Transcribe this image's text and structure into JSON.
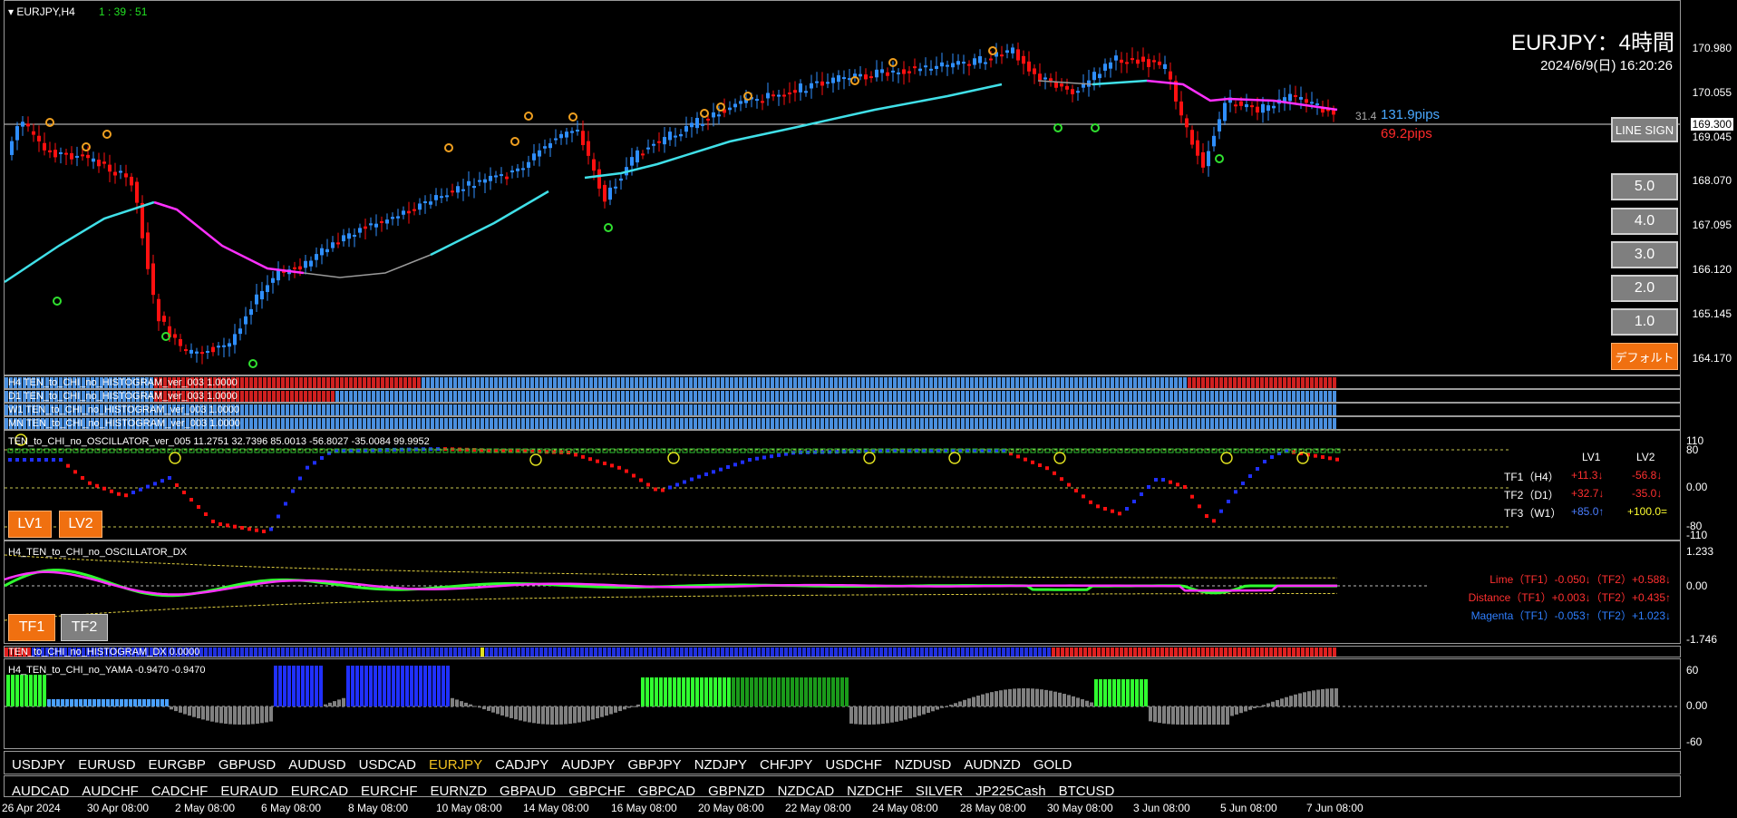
{
  "header": {
    "symbol_tf": "EURJPY,H4",
    "countdown": "1 : 39 : 51"
  },
  "title_block": {
    "title": "EURJPY：4時間",
    "datetime": "2024/6/9(日) 16:20:26"
  },
  "price_axis": [
    "170.980",
    "170.055",
    "169.045",
    "168.070",
    "167.095",
    "166.120",
    "165.145",
    "164.170"
  ],
  "current_price": "169.300",
  "pips": {
    "spread": "31.4",
    "up": "131.9pips",
    "down": "69.2pips"
  },
  "buttons": {
    "line_sign": "LINE SIGN",
    "levels": [
      "5.0",
      "4.0",
      "3.0",
      "2.0",
      "1.0"
    ],
    "default": "デフォルト"
  },
  "histograms": [
    {
      "label": "H4 TEN_to_CHI_no_HISTOGRAM_ver_003 1.0000"
    },
    {
      "label": "D1 TEN_to_CHI_no_HISTOGRAM_ver_003 1.0000"
    },
    {
      "label": "W1 TEN_to_CHI_no_HISTOGRAM_ver_003 1.0000"
    },
    {
      "label": "MN TEN_to_CHI_no_HISTOGRAM_ver_003 1.0000"
    }
  ],
  "oscillator": {
    "label": "TEN_to_CHI_no_OSCILLATOR_ver_005 11.2751 32.7396 85.0013 -56.8027 -35.0084 99.9952",
    "axis": [
      "110",
      "80",
      "0.00",
      "-80",
      "-110"
    ],
    "lv_buttons": [
      "LV1",
      "LV2"
    ],
    "table_header": [
      "LV1",
      "LV2"
    ],
    "rows": [
      {
        "name": "TF1（H4）",
        "lv1": "+11.3↓",
        "lv2": "-56.8↓"
      },
      {
        "name": "TF2（D1）",
        "lv1": "+32.7↓",
        "lv2": "-35.0↓"
      },
      {
        "name": "TF3（W1）",
        "lv1": "+85.0↑",
        "lv2": "+100.0="
      }
    ]
  },
  "dx": {
    "label": "H4_TEN_to_CHI_no_OSCILLATOR_DX",
    "axis": [
      "1.233",
      "0.00",
      "-1.746"
    ],
    "tf_buttons": [
      "TF1",
      "TF2"
    ],
    "lines": [
      "Lime（TF1）-0.050↓（TF2）+0.588↓",
      "Distance（TF1）+0.003↓（TF2）+0.435↑",
      "Magenta（TF1）-0.053↑（TF2）+1.023↓"
    ]
  },
  "hist_dx": {
    "label": "TEN_to_CHI_no_HISTOGRAM_DX 0.0000"
  },
  "yama": {
    "label": "H4_TEN_to_CHI_no_YAMA -0.9470 -0.9470",
    "axis": [
      "60",
      "0.00",
      "-60"
    ]
  },
  "symbols_row1": [
    "USDJPY",
    "EURUSD",
    "EURGBP",
    "GBPUSD",
    "AUDUSD",
    "USDCAD",
    "EURJPY",
    "CADJPY",
    "AUDJPY",
    "GBPJPY",
    "NZDJPY",
    "CHFJPY",
    "USDCHF",
    "NZDUSD",
    "AUDNZD",
    "GOLD"
  ],
  "symbols_row2": [
    "AUDCAD",
    "AUDCHF",
    "CADCHF",
    "EURAUD",
    "EURCAD",
    "EURCHF",
    "EURNZD",
    "GBPAUD",
    "GBPCHF",
    "GBPCAD",
    "GBPNZD",
    "NZDCAD",
    "NZDCHF",
    "SILVER",
    "JP225Cash",
    "BTCUSD"
  ],
  "active_symbol": "EURJPY",
  "dates": [
    "26 Apr 2024",
    "30 Apr 08:00",
    "2 May 08:00",
    "6 May 08:00",
    "8 May 08:00",
    "10 May 08:00",
    "14 May 08:00",
    "16 May 08:00",
    "20 May 08:00",
    "22 May 08:00",
    "24 May 08:00",
    "28 May 08:00",
    "30 May 08:00",
    "3 Jun 08:00",
    "5 Jun 08:00",
    "7 Jun 08:00"
  ],
  "colors": {
    "bull": "#2f8fff",
    "bear": "#ff1010",
    "ma_cyan": "#40e0e8",
    "ma_magenta": "#ff30ff",
    "accent": "#f07010"
  }
}
